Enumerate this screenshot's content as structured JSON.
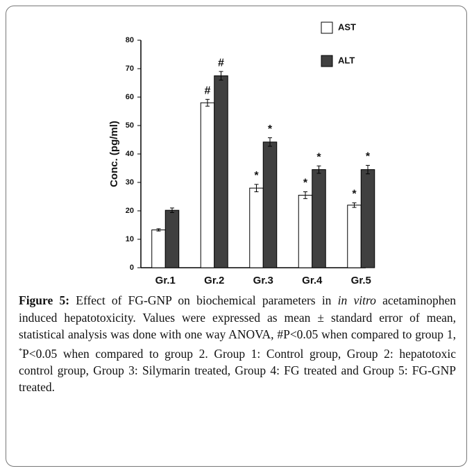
{
  "chart_data": {
    "type": "bar",
    "y_label": "Conc. (pg/ml)",
    "categories": [
      "Gr.1",
      "Gr.2",
      "Gr.3",
      "Gr.4",
      "Gr.5"
    ],
    "series": [
      {
        "name": "AST",
        "color": "#ffffff",
        "values": [
          13.3,
          58,
          28,
          25.5,
          22
        ],
        "errors": [
          0.4,
          1.2,
          1.3,
          1.2,
          0.8
        ],
        "markers": [
          null,
          "#",
          "*",
          "*",
          "*"
        ]
      },
      {
        "name": "ALT",
        "color": "#404040",
        "values": [
          20.2,
          67.5,
          44.2,
          34.5,
          34.5
        ],
        "errors": [
          0.8,
          1.5,
          1.5,
          1.3,
          1.5
        ],
        "markers": [
          null,
          "#",
          "*",
          "*",
          "*"
        ]
      }
    ],
    "ylim": [
      0,
      80
    ],
    "yticks": [
      0,
      10,
      20,
      30,
      40,
      50,
      60,
      70,
      80
    ],
    "grid": false,
    "legend": "upper right"
  },
  "caption": {
    "label": "Figure 5:",
    "text1": " Effect of FG-GNP on biochemical parameters in ",
    "italic": "in vitro",
    "text2": " acetaminophen induced hepatotoxicity. Values were expressed as mean ± standard error of mean, statistical analysis was done with one way ANOVA, #P<0.05 when compared to group 1, ",
    "sup": "*",
    "text3": "P<0.05 when compared to group 2. Group 1: Control group, Group 2: hepatotoxic control group, Group 3: Silymarin treated, Group 4: FG treated and Group 5: FG-GNP treated."
  }
}
